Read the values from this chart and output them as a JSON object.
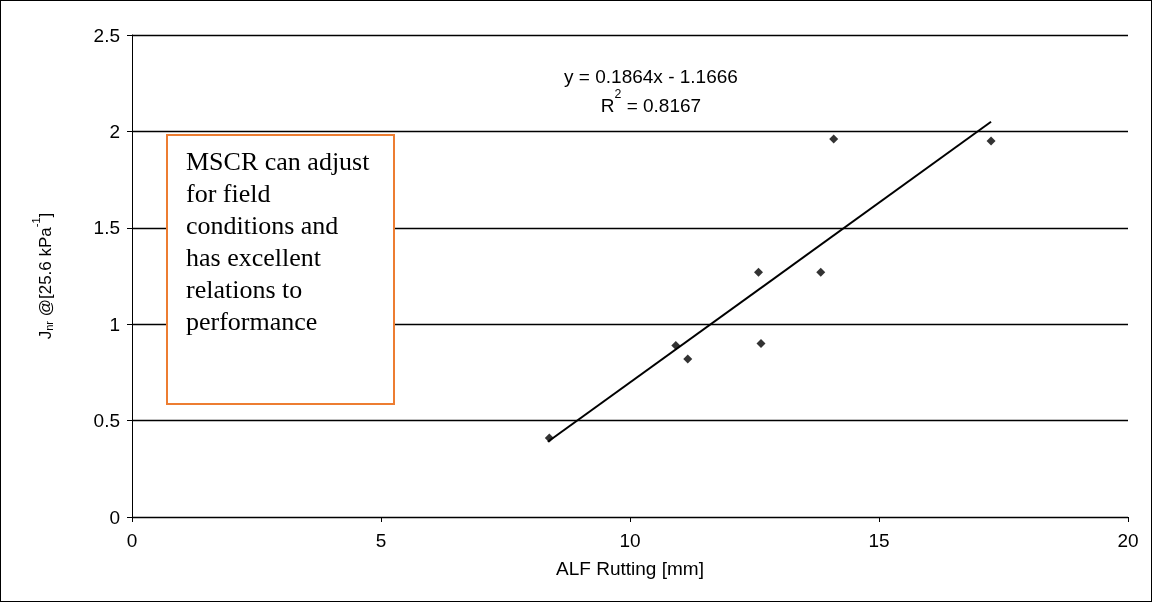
{
  "chart_data": {
    "type": "scatter",
    "xlabel": "ALF Rutting [mm]",
    "ylabel": "J$_{nr}$ @[25.6 kPa$^{-1}$]",
    "x": [
      8.38,
      10.92,
      11.16,
      12.58,
      12.63,
      13.83,
      14.09,
      17.25
    ],
    "series": [
      {
        "type": "scatter",
        "color": "#000000",
        "marker": "diamond",
        "values": [
          0.41,
          0.89,
          0.82,
          1.27,
          0.9,
          1.27,
          1.96,
          1.95
        ]
      },
      {
        "type": "line",
        "color": "#000000",
        "marker": "none",
        "line_style": "solid",
        "x": [
          8.35,
          17.25
        ],
        "values": [
          0.39,
          2.05
        ]
      }
    ],
    "xlim": [
      0,
      20
    ],
    "xticks": [
      0,
      5,
      10,
      15,
      20
    ],
    "ylim": [
      0,
      2.5
    ],
    "yticks": [
      0,
      0.5,
      1,
      1.5,
      2,
      2.5
    ],
    "grid": "y",
    "annotations": [
      "y = 0.1864x - 1.1666",
      "R$^{2}$ = 0.8167",
      "MSCR can adjust for field conditions and has excellent relations to performance"
    ]
  }
}
